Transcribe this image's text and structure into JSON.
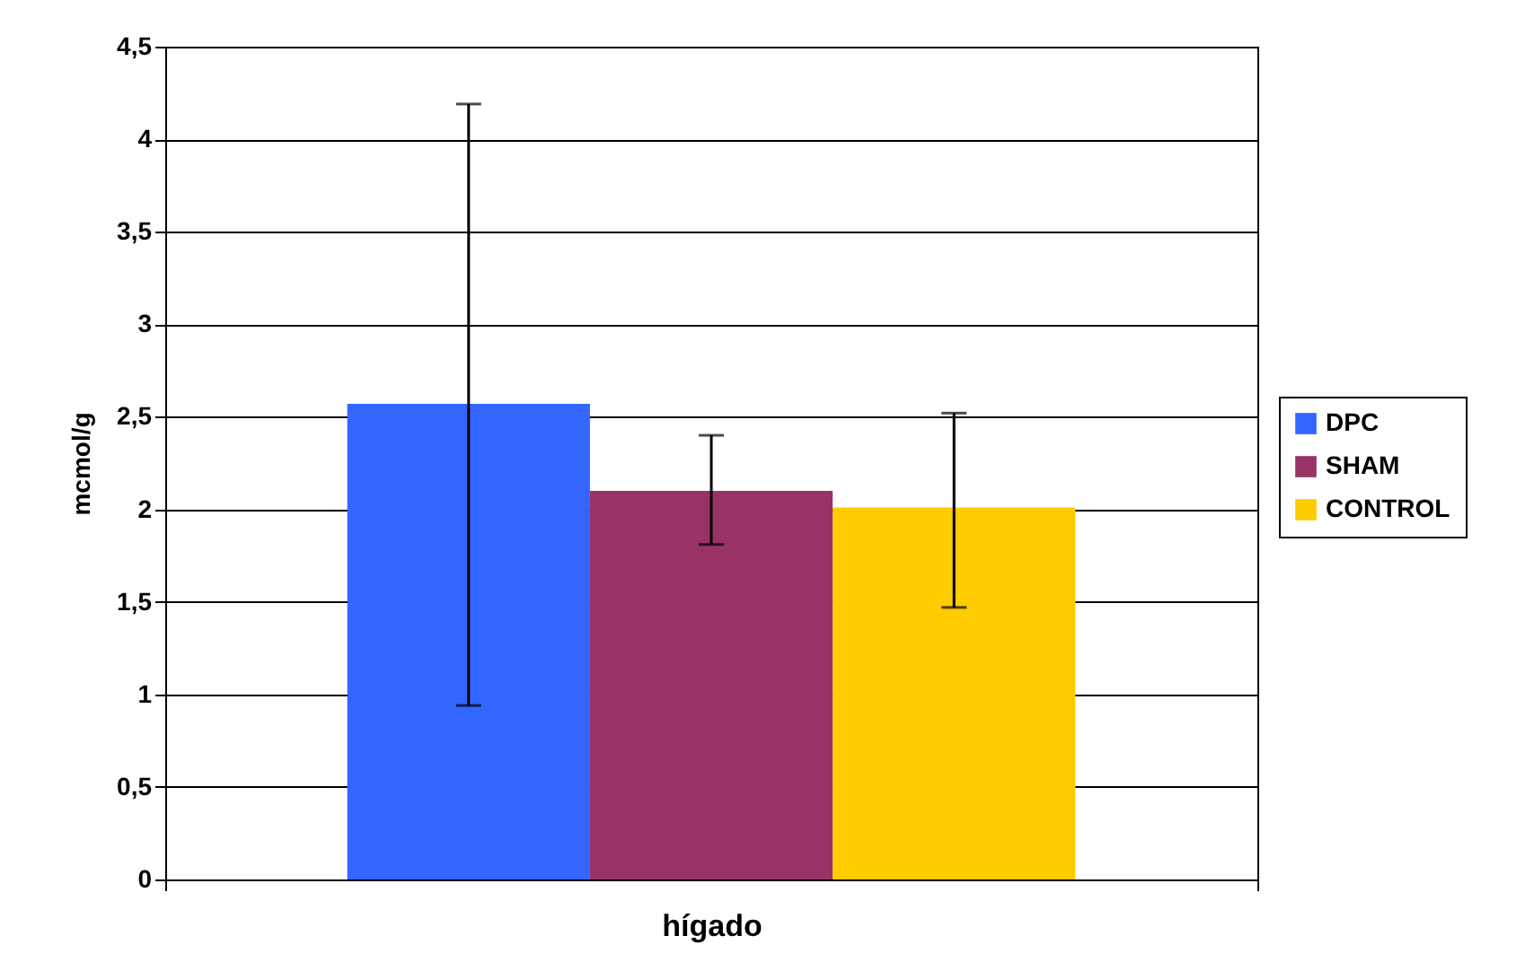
{
  "chart_data": {
    "type": "bar",
    "categories": [
      "hígado"
    ],
    "ylabel": "mcmol/g",
    "series": [
      {
        "name": "DPC",
        "color": "#3366ff",
        "values": [
          2.57
        ],
        "errors": [
          [
            0.94,
            4.19
          ]
        ]
      },
      {
        "name": "SHAM",
        "color": "#993366",
        "values": [
          2.1
        ],
        "errors": [
          [
            1.81,
            2.4
          ]
        ]
      },
      {
        "name": "CONTROL",
        "color": "#ffcc00",
        "values": [
          2.01
        ],
        "errors": [
          [
            1.47,
            2.52
          ]
        ]
      }
    ],
    "ylim": [
      0,
      4.5
    ],
    "yticks": [
      0,
      {
        "value": 0.5,
        "label": "0,5"
      },
      1,
      {
        "value": 1.5,
        "label": "1,5"
      },
      2,
      {
        "value": 2.5,
        "label": "2,5"
      },
      3,
      {
        "value": 3.5,
        "label": "3,5"
      },
      4,
      {
        "value": 4.5,
        "label": "4,5"
      }
    ],
    "grid": "y",
    "legend": "right"
  }
}
